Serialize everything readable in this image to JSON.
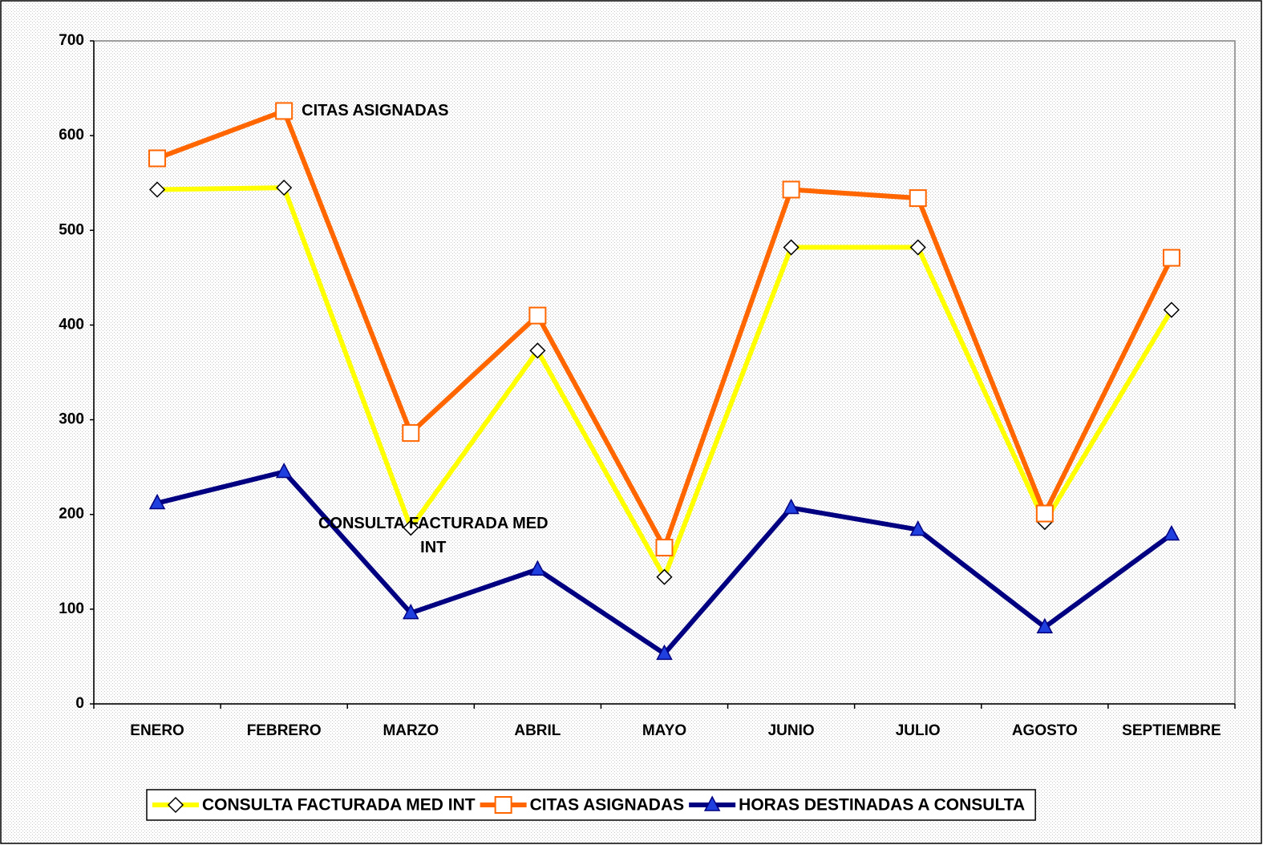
{
  "chart_data": {
    "type": "line",
    "categories": [
      "ENERO",
      "FEBRERO",
      "MARZO",
      "ABRIL",
      "MAYO",
      "JUNIO",
      "JULIO",
      "AGOSTO",
      "SEPTIEMBRE"
    ],
    "series": [
      {
        "name": "CONSULTA FACTURADA MED INT",
        "color": "#ffff00",
        "marker": "diamond",
        "values": [
          543,
          545,
          186,
          373,
          134,
          482,
          482,
          192,
          416
        ]
      },
      {
        "name": "CITAS ASIGNADAS",
        "color": "#ff6600",
        "marker": "square",
        "values": [
          576,
          626,
          286,
          410,
          165,
          543,
          534,
          201,
          471
        ]
      },
      {
        "name": "HORAS DESTINADAS A CONSULTA",
        "color": "#000080",
        "marker": "triangle",
        "values": [
          212,
          245,
          96,
          142,
          53,
          207,
          184,
          81,
          179
        ]
      }
    ],
    "annotations": [
      {
        "text": "CITAS ASIGNADAS",
        "series": 1,
        "category": 1
      },
      {
        "text": "CONSULTA FACTURADA MED INT",
        "series": 0,
        "category": 2
      }
    ],
    "ylim": [
      0,
      700
    ],
    "yticks": [
      0,
      100,
      200,
      300,
      400,
      500,
      600,
      700
    ],
    "grid": false,
    "legend": "bottom"
  }
}
